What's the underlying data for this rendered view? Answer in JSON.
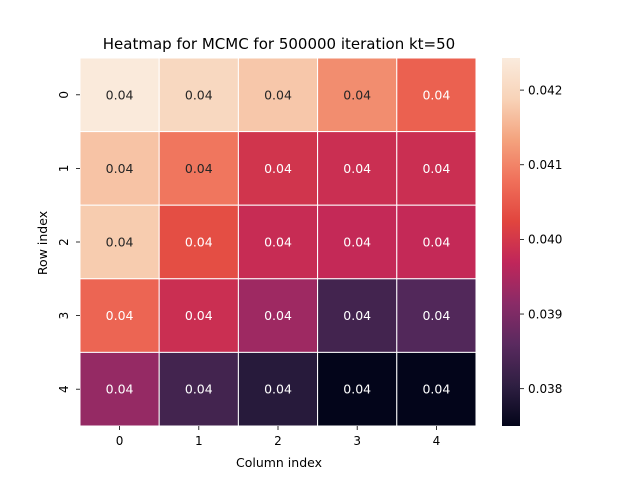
{
  "chart_data": {
    "type": "heatmap",
    "title": "Heatmap for MCMC for 500000 iteration kt=50",
    "xlabel": "Column index",
    "ylabel": "Row index",
    "x_ticks": [
      "0",
      "1",
      "2",
      "3",
      "4"
    ],
    "y_ticks": [
      "0",
      "1",
      "2",
      "3",
      "4"
    ],
    "values": [
      [
        0.0424,
        0.042,
        0.04175,
        0.0411,
        0.0406
      ],
      [
        0.0417,
        0.04085,
        0.03995,
        0.03985,
        0.03985
      ],
      [
        0.0418,
        0.04035,
        0.0398,
        0.03975,
        0.03975
      ],
      [
        0.04065,
        0.03985,
        0.03935,
        0.0383,
        0.0385
      ],
      [
        0.03925,
        0.0383,
        0.03795,
        0.0375,
        0.0375
      ]
    ],
    "cell_labels": [
      [
        "0.04",
        "0.04",
        "0.04",
        "0.04",
        "0.04"
      ],
      [
        "0.04",
        "0.04",
        "0.04",
        "0.04",
        "0.04"
      ],
      [
        "0.04",
        "0.04",
        "0.04",
        "0.04",
        "0.04"
      ],
      [
        "0.04",
        "0.04",
        "0.04",
        "0.04",
        "0.04"
      ],
      [
        "0.04",
        "0.04",
        "0.04",
        "0.04",
        "0.04"
      ]
    ],
    "colorbar": {
      "range": [
        0.0375,
        0.04243
      ],
      "ticks": [
        0.038,
        0.039,
        0.04,
        0.041,
        0.042
      ],
      "tick_labels": [
        "0.038",
        "0.039",
        "0.040",
        "0.041",
        "0.042"
      ]
    },
    "colormap": "rocket",
    "colormap_stops": [
      "#03051a",
      "#2f1f42",
      "#5a2a5f",
      "#8a2b67",
      "#c0265a",
      "#e1453e",
      "#f0705a",
      "#f4a37e",
      "#f8d3b8",
      "#faebdd"
    ]
  }
}
